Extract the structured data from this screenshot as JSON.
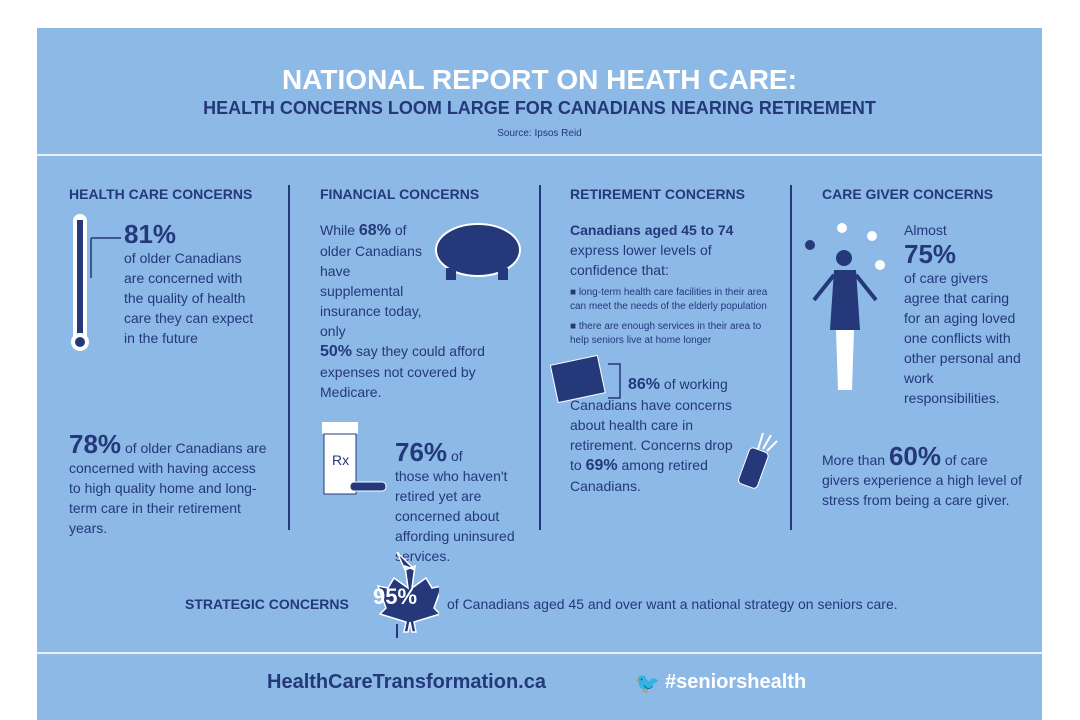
{
  "header": {
    "title": "NATIONAL REPORT ON HEATH CARE:",
    "subtitle": "HEALTH CONCERNS LOOM LARGE FOR CANADIANS NEARING RETIREMENT",
    "source": "Source: Ipsos Reid"
  },
  "health": {
    "heading": "HEALTH CARE CONCERNS",
    "stat1": "81%",
    "text1": "of older Canadians are concerned with the quality of health care they can expect in the future",
    "stat2": "78%",
    "text2": "of older Canadians are concerned with having access to high quality home and long-term care in their retirement years."
  },
  "financial": {
    "heading": "FINANCIAL CONCERNS",
    "pre": "While",
    "stat1": "68%",
    "text1": "of older Canadians have supplemental insurance today, only",
    "stat2": "50%",
    "text2": "say they could afford expenses not covered by Medicare.",
    "stat3": "76%",
    "text3a": "of",
    "text3": "those who haven't retired yet are concerned about affording uninsured services."
  },
  "retirement": {
    "heading": "RETIREMENT CONCERNS",
    "lead": "Canadians aged 45 to 74",
    "text1": "express lower levels of confidence that:",
    "bullets": [
      "long-term health care facilities in their area can meet the needs of the elderly population",
      "there are enough services in their area to help seniors live at home longer"
    ],
    "stat2": "86%",
    "text2a": "of working",
    "text2": "Canadians have concerns about health care in retirement. Concerns drop to",
    "stat3": "69%",
    "text3": "among retired Canadians."
  },
  "caregiver": {
    "heading": "CARE GIVER CONCERNS",
    "pre": "Almost",
    "stat1": "75%",
    "text1": "of care givers agree that caring for an aging loved one conflicts with other personal and work responsibilities.",
    "pre2": "More than",
    "stat2": "60%",
    "text2": "of care givers experience a high level of stress from being a care giver."
  },
  "strategic": {
    "label": "STRATEGIC CONCERNS",
    "stat": "95%",
    "text": "of Canadians aged 45 and over want a national strategy on seniors care."
  },
  "footer": {
    "website": "HealthCareTransformation.ca",
    "hashtag": "#seniorshealth"
  },
  "colors": {
    "background": "#8cb9e6",
    "navy": "#24387a",
    "white": "#ffffff"
  }
}
